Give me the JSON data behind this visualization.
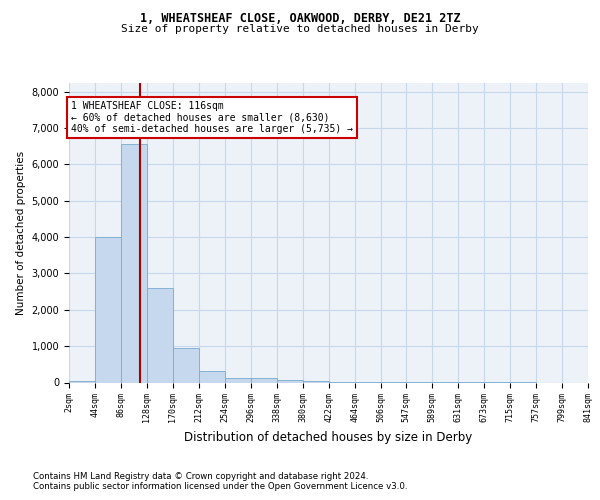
{
  "title1": "1, WHEATSHEAF CLOSE, OAKWOOD, DERBY, DE21 2TZ",
  "title2": "Size of property relative to detached houses in Derby",
  "xlabel": "Distribution of detached houses by size in Derby",
  "ylabel": "Number of detached properties",
  "bar_color": "#c5d8ee",
  "bar_edge_color": "#7aaad0",
  "grid_color": "#c8d8ec",
  "background_color": "#edf2f9",
  "vline_color": "#aa0000",
  "annotation_text": "1 WHEATSHEAF CLOSE: 116sqm\n← 60% of detached houses are smaller (8,630)\n40% of semi-detached houses are larger (5,735) →",
  "annotation_box_color": "#ffffff",
  "annotation_box_edge": "#cc0000",
  "bin_edges": [
    2,
    44,
    86,
    128,
    170,
    212,
    254,
    296,
    338,
    380,
    422,
    464,
    506,
    547,
    589,
    631,
    673,
    715,
    757,
    799,
    841
  ],
  "bin_counts": [
    50,
    4000,
    6550,
    2600,
    950,
    310,
    115,
    115,
    65,
    50,
    10,
    5,
    3,
    2,
    1,
    1,
    1,
    1,
    0,
    0
  ],
  "vline_x": 116,
  "ylim": [
    0,
    8250
  ],
  "yticks": [
    0,
    1000,
    2000,
    3000,
    4000,
    5000,
    6000,
    7000,
    8000
  ],
  "footnote1": "Contains HM Land Registry data © Crown copyright and database right 2024.",
  "footnote2": "Contains public sector information licensed under the Open Government Licence v3.0."
}
